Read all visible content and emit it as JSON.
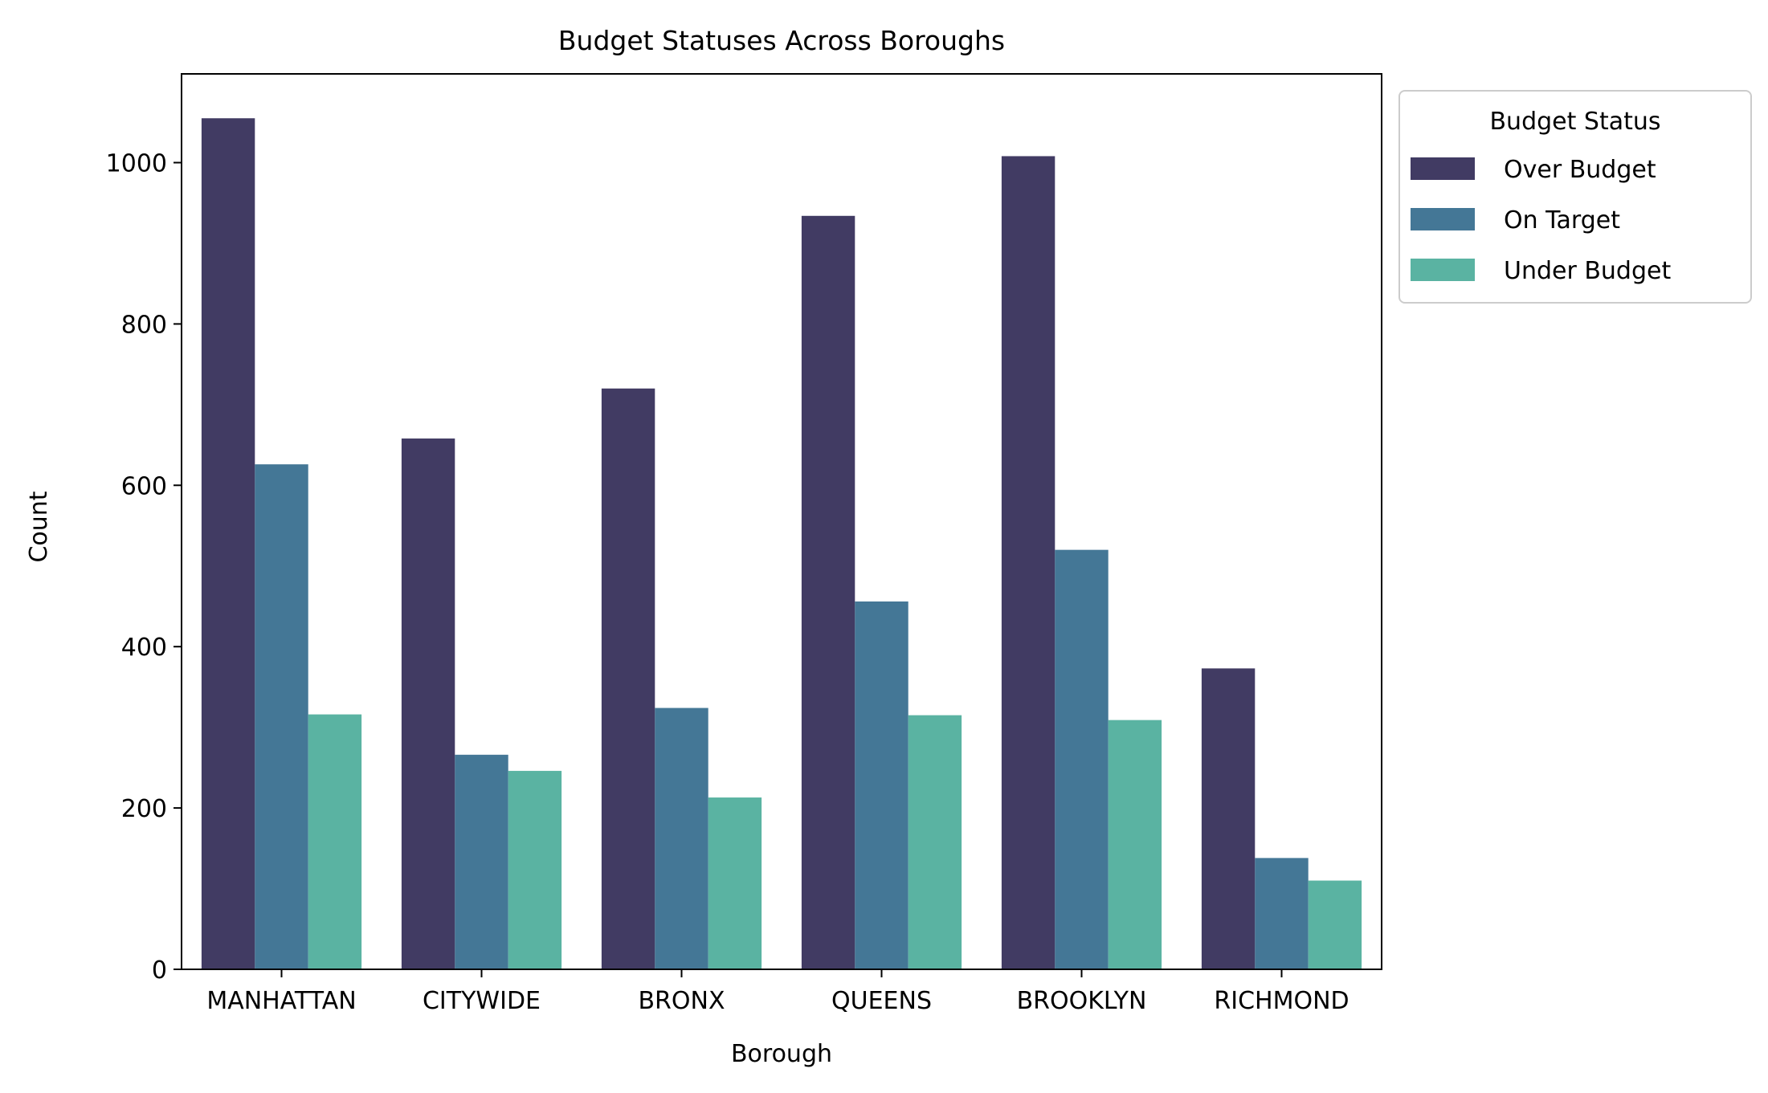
{
  "chart_data": {
    "type": "bar",
    "title": "Budget Statuses Across Boroughs",
    "xlabel": "Borough",
    "ylabel": "Count",
    "categories": [
      "MANHATTAN",
      "CITYWIDE",
      "BRONX",
      "QUEENS",
      "BROOKLYN",
      "RICHMOND"
    ],
    "ylim": [
      0,
      1110
    ],
    "yticks": [
      0,
      200,
      400,
      600,
      800,
      1000
    ],
    "grid": false,
    "legend": {
      "title": "Budget Status",
      "placement": "outside-top-right"
    },
    "series": [
      {
        "name": "Over Budget",
        "color": "#413b63",
        "values": [
          1055,
          658,
          720,
          934,
          1008,
          373
        ]
      },
      {
        "name": "On Target",
        "color": "#447796",
        "values": [
          626,
          266,
          324,
          456,
          520,
          138
        ]
      },
      {
        "name": "Under Budget",
        "color": "#5ab3a2",
        "values": [
          316,
          246,
          213,
          315,
          309,
          110
        ]
      }
    ]
  }
}
